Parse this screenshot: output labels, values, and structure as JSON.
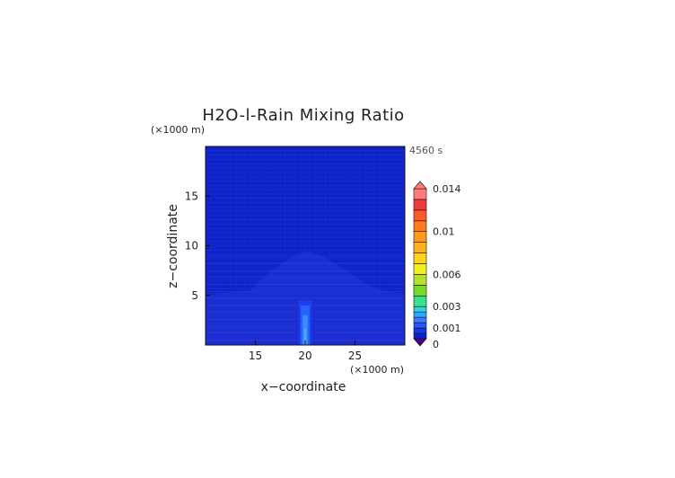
{
  "chart_data": {
    "type": "heatmap",
    "title": "H2O-l-Rain Mixing Ratio",
    "xlabel": "x−coordinate",
    "ylabel": "z−coordinate",
    "x_unit": "(×1000 m)",
    "y_unit": "(×1000 m)",
    "time_label": "4560 s",
    "xlim": [
      10,
      30
    ],
    "ylim": [
      0,
      20
    ],
    "x_ticks": [
      15,
      20,
      25
    ],
    "y_ticks": [
      5,
      10,
      15
    ],
    "colorbar": {
      "levels": [
        0,
        0.0005,
        0.001,
        0.0015,
        0.002,
        0.0025,
        0.003,
        0.004,
        0.005,
        0.006,
        0.007,
        0.008,
        0.009,
        0.01,
        0.011,
        0.012,
        0.013,
        0.014
      ],
      "colors": [
        "#4b0082",
        "#0a1fd0",
        "#1338e8",
        "#2a55ff",
        "#3a7dff",
        "#2ea7ff",
        "#2fd4e0",
        "#39e28a",
        "#7ad82a",
        "#b8e02a",
        "#f0f020",
        "#ffd21a",
        "#ffb020",
        "#ff9a1a",
        "#ff7a1a",
        "#ff5a2a",
        "#f03a3a",
        "#ff7a7a"
      ],
      "tick_values": [
        0,
        0.001,
        0.003,
        0.006,
        0.01,
        0.014
      ],
      "tick_labels": [
        "0",
        "0.001",
        "0.003",
        "0.006",
        "0.01",
        "0.014"
      ]
    },
    "field_description_values": {
      "background_value": 0,
      "rain_column": {
        "x": 20,
        "z_top": 4.5,
        "max_value": 0.0015
      }
    }
  }
}
